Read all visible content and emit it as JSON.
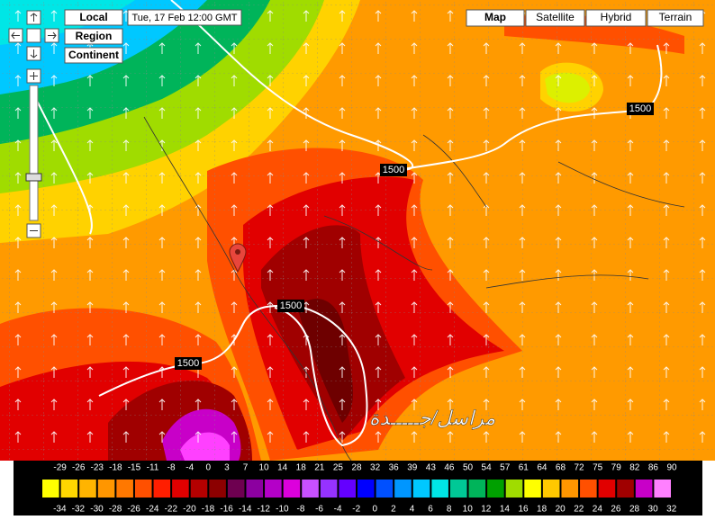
{
  "controls": {
    "local": "Local",
    "region": "Region",
    "continent": "Continent"
  },
  "timestamp": "Tue, 17 Feb 12:00 GMT",
  "map_types": [
    "Map",
    "Satellite",
    "Hybrid",
    "Terrain"
  ],
  "contour_labels": [
    "1500",
    "1500",
    "1500",
    "1500"
  ],
  "watermark": "مراسل/جـــــدة",
  "legend": {
    "top_labels": [
      -29,
      -26,
      -23,
      -18,
      -15,
      -11,
      -8,
      -4,
      0,
      3,
      7,
      10,
      14,
      18,
      21,
      25,
      28,
      32,
      36,
      39,
      43,
      46,
      50,
      54,
      57,
      61,
      64,
      68,
      72,
      75,
      79,
      82,
      86,
      90
    ],
    "bottom_labels": [
      -34,
      -32,
      -30,
      -28,
      -26,
      -24,
      -22,
      -20,
      -18,
      -16,
      -14,
      -12,
      -10,
      -8,
      -6,
      -4,
      -2,
      0,
      2,
      4,
      6,
      8,
      10,
      12,
      14,
      16,
      18,
      20,
      22,
      24,
      26,
      28,
      30,
      32
    ],
    "colors": [
      "#ffff00",
      "#ffd700",
      "#ffb400",
      "#ff9600",
      "#ff7800",
      "#ff5000",
      "#ff1e00",
      "#e10000",
      "#b40000",
      "#8c0000",
      "#6e0050",
      "#8c00a0",
      "#b400c8",
      "#dc00dc",
      "#c850ff",
      "#9632ff",
      "#6400ff",
      "#0000ff",
      "#0050ff",
      "#0096ff",
      "#00c8ff",
      "#00e6e6",
      "#00c896",
      "#00b45a",
      "#00a000",
      "#a0dc00",
      "#ffff00",
      "#ffc800",
      "#ff9600",
      "#ff5000",
      "#e10000",
      "#a00000",
      "#c800c8",
      "#ff80ff"
    ]
  }
}
